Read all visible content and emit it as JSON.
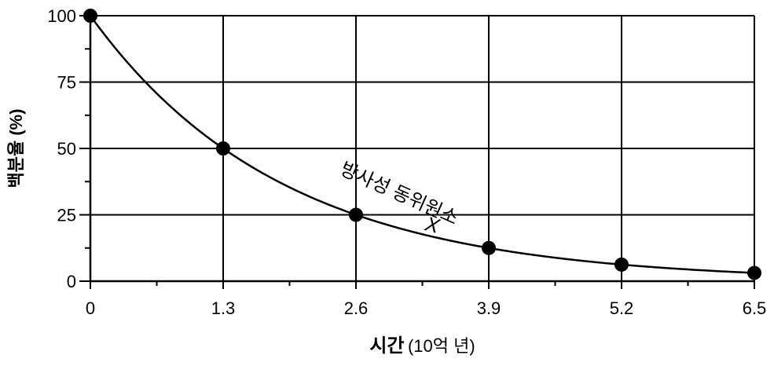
{
  "chart_data": {
    "type": "line",
    "x": [
      0,
      1.3,
      2.6,
      3.9,
      5.2,
      6.5
    ],
    "y": [
      100,
      50,
      25,
      12.5,
      6.25,
      3.125
    ],
    "series": [
      {
        "x": [
          0,
          1.3,
          2.6,
          3.9,
          5.2,
          6.5
        ],
        "values": [
          100,
          50,
          25,
          12.5,
          6.25,
          3.125
        ]
      }
    ],
    "xticks": [
      "0",
      "1.3",
      "2.6",
      "3.9",
      "5.2",
      "6.5"
    ],
    "yticks": [
      "0",
      "25",
      "50",
      "75",
      "100"
    ],
    "xlim": [
      0,
      6.5
    ],
    "ylim": [
      0,
      100
    ],
    "xlabel_bold": "시간",
    "xlabel_rest": "(10억 년)",
    "ylabel": "백분율 (%)",
    "curve_label": "방사성 동위원소",
    "curve_variable": "X",
    "grid": true,
    "line_color": "#000000",
    "marker_color": "#000000"
  }
}
